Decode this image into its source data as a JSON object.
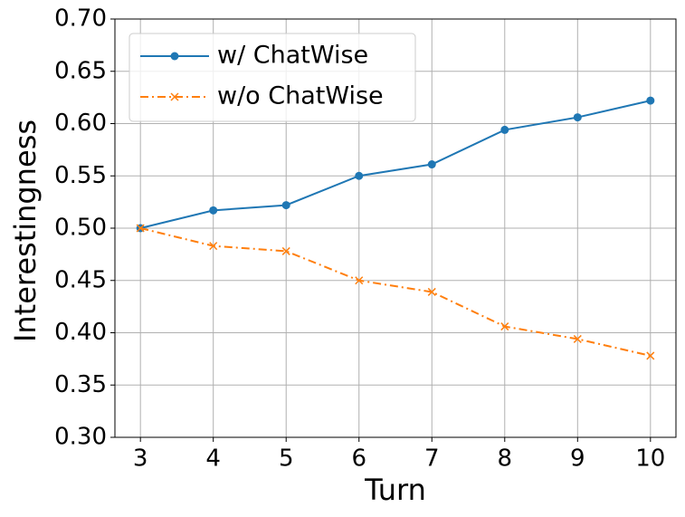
{
  "chart_data": {
    "type": "line",
    "xlabel": "Turn",
    "ylabel": "Interestingness",
    "x": [
      3,
      4,
      5,
      6,
      7,
      8,
      9,
      10
    ],
    "series": [
      {
        "name": "w/ ChatWise",
        "color": "#1f77b4",
        "linestyle": "solid",
        "marker": "circle",
        "values": [
          0.5,
          0.517,
          0.522,
          0.55,
          0.561,
          0.594,
          0.606,
          0.622
        ]
      },
      {
        "name": "w/o ChatWise",
        "color": "#ff7f0e",
        "linestyle": "dashdot",
        "marker": "x",
        "values": [
          0.5,
          0.483,
          0.478,
          0.45,
          0.439,
          0.406,
          0.394,
          0.378
        ]
      }
    ],
    "xlim": [
      2.65,
      10.35
    ],
    "xticks": [
      3,
      4,
      5,
      6,
      7,
      8,
      9,
      10
    ],
    "ylim": [
      0.3,
      0.7
    ],
    "yticks": [
      {
        "value": 0.3,
        "label": "0.30"
      },
      {
        "value": 0.35,
        "label": "0.35"
      },
      {
        "value": 0.4,
        "label": "0.40"
      },
      {
        "value": 0.45,
        "label": "0.45"
      },
      {
        "value": 0.5,
        "label": "0.50"
      },
      {
        "value": 0.55,
        "label": "0.55"
      },
      {
        "value": 0.6,
        "label": "0.60"
      },
      {
        "value": 0.65,
        "label": "0.65"
      },
      {
        "value": 0.7,
        "label": "0.70"
      }
    ],
    "grid": true,
    "legend": "upper-left"
  }
}
